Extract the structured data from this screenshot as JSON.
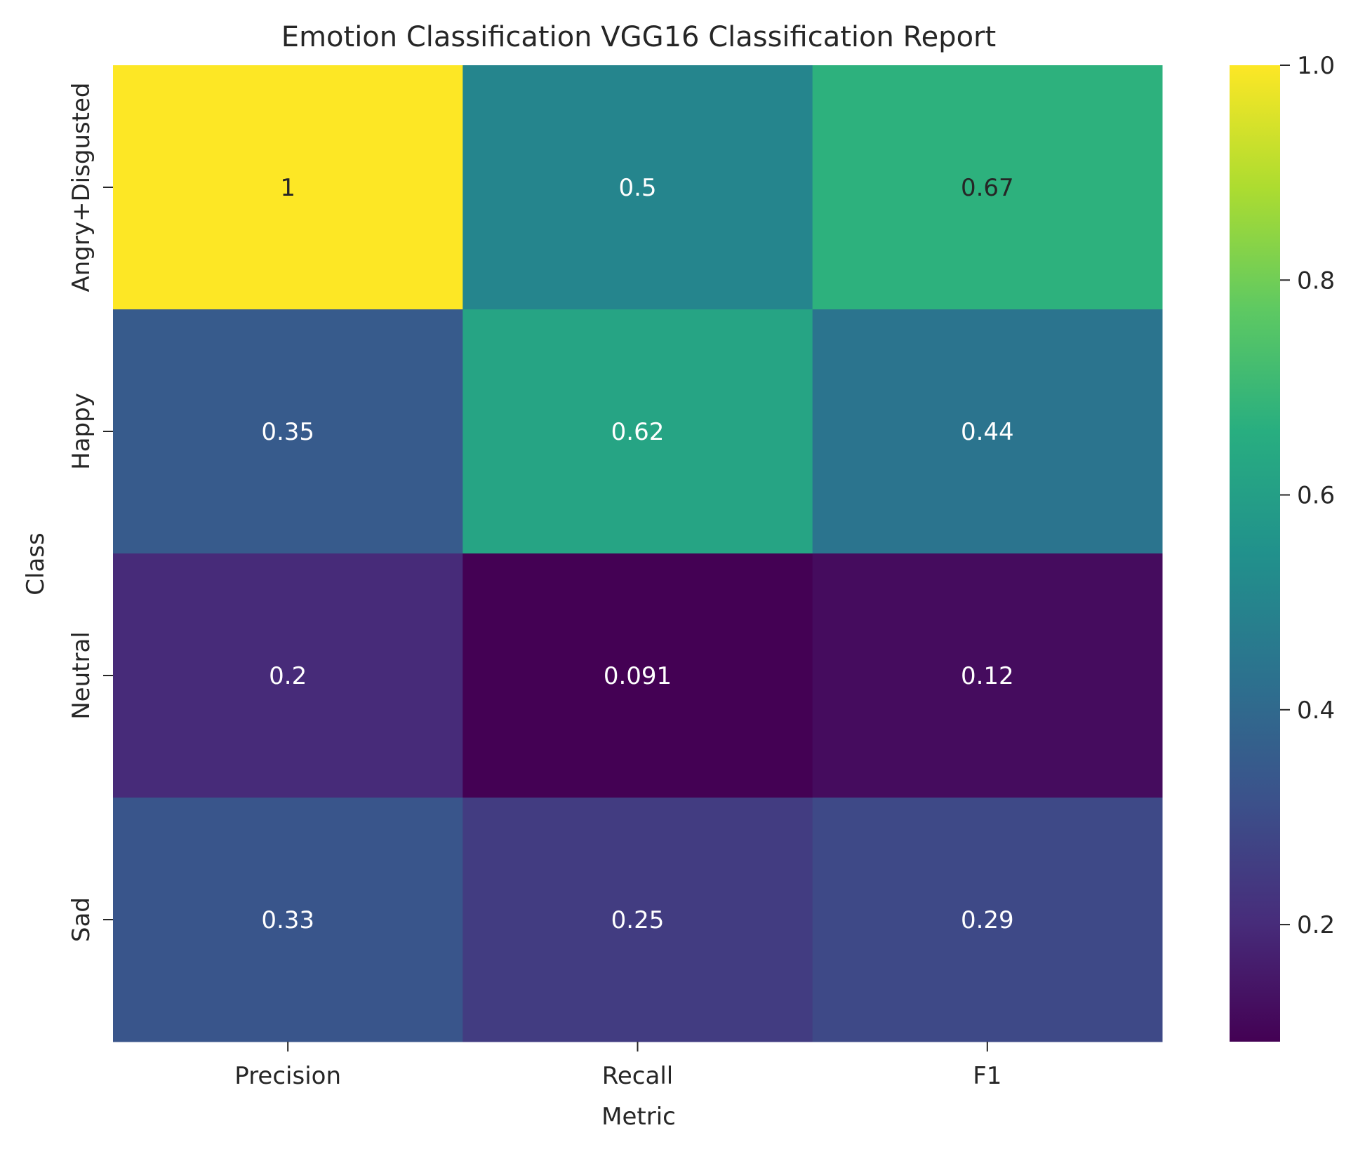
{
  "chart_data": {
    "type": "heatmap",
    "title": "Emotion Classification VGG16 Classification Report",
    "xlabel": "Metric",
    "ylabel": "Class",
    "columns": [
      "Precision",
      "Recall",
      "F1"
    ],
    "rows": [
      "Angry+Disgusted",
      "Happy",
      "Neutral",
      "Sad"
    ],
    "values": [
      [
        1.0,
        0.5,
        0.67
      ],
      [
        0.35,
        0.62,
        0.44
      ],
      [
        0.2,
        0.091,
        0.12
      ],
      [
        0.33,
        0.25,
        0.29
      ]
    ],
    "cell_labels": [
      [
        "1",
        "0.5",
        "0.67"
      ],
      [
        "0.35",
        "0.62",
        "0.44"
      ],
      [
        "0.2",
        "0.091",
        "0.12"
      ],
      [
        "0.33",
        "0.25",
        "0.29"
      ]
    ],
    "colormap": "viridis",
    "color_range": [
      0.091,
      1.0
    ],
    "colorbar_ticks": [
      "0.2",
      "0.4",
      "0.6",
      "0.8",
      "1.0"
    ],
    "colorbar_tick_values": [
      0.2,
      0.4,
      0.6,
      0.8,
      1.0
    ]
  }
}
